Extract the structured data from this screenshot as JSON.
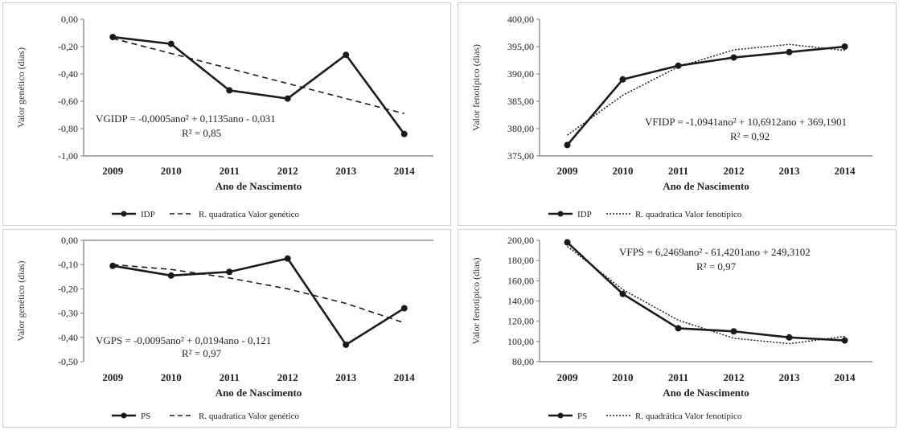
{
  "chart_data": [
    {
      "type": "line",
      "x": [
        "2009",
        "2010",
        "2011",
        "2012",
        "2013",
        "2014"
      ],
      "xlabel": "Ano de Nascimento",
      "ylabel": "Valor genético (dias)",
      "ylim": [
        -1.0,
        0.0
      ],
      "yticks": [
        "0,00",
        "-0,20",
        "-0,40",
        "-0,60",
        "-0,80",
        "-1,00"
      ],
      "grid": false,
      "series": [
        {
          "name": "IDP",
          "style": "solid-marker",
          "values": [
            -0.13,
            -0.18,
            -0.52,
            -0.58,
            -0.26,
            -0.84
          ]
        },
        {
          "name": "R. quadratica Valor genético",
          "style": "dashed",
          "values": [
            -0.14,
            -0.25,
            -0.36,
            -0.47,
            -0.58,
            -0.69
          ]
        }
      ],
      "equation": "VGIDP = -0,0005ano² + 0,1135ano - 0,031",
      "r2": "R² = 0,85",
      "legend": [
        "IDP",
        "R. quadratica Valor genético"
      ]
    },
    {
      "type": "line",
      "x": [
        "2009",
        "2010",
        "2011",
        "2012",
        "2013",
        "2014"
      ],
      "xlabel": "Ano de Nascimento",
      "ylabel": "Valor fenotípico (dias)",
      "ylim": [
        375.0,
        400.0
      ],
      "yticks": [
        "400,00",
        "395,00",
        "390,00",
        "385,00",
        "380,00",
        "375,00"
      ],
      "grid": false,
      "series": [
        {
          "name": "IDP",
          "style": "solid-marker",
          "values": [
            377.0,
            389.0,
            391.5,
            393.0,
            394.0,
            395.0
          ]
        },
        {
          "name": "R. quadratica Valor fenotípico",
          "style": "dotted",
          "values": [
            378.8,
            386.1,
            391.3,
            394.4,
            395.4,
            394.3
          ]
        }
      ],
      "equation": "VFIDP = -1,0941ano² + 10,6912ano + 369,1901",
      "r2": "R² = 0,92",
      "legend": [
        "IDP",
        "R. quadratica Valor fenotípico"
      ]
    },
    {
      "type": "line",
      "x": [
        "2009",
        "2010",
        "2011",
        "2012",
        "2013",
        "2014"
      ],
      "xlabel": "Ano de Nascimento",
      "ylabel": "Valor genético (dias)",
      "ylim": [
        -0.5,
        0.0
      ],
      "yticks": [
        "0,00",
        "-0,10",
        "-0,20",
        "-0,30",
        "-0,40",
        "-0,50"
      ],
      "grid": false,
      "series": [
        {
          "name": "PS",
          "style": "solid-marker",
          "values": [
            -0.105,
            -0.145,
            -0.13,
            -0.075,
            -0.43,
            -0.28
          ]
        },
        {
          "name": "R. quadratica Valor genético",
          "style": "dashed",
          "values": [
            -0.1,
            -0.12,
            -0.155,
            -0.2,
            -0.26,
            -0.34
          ]
        }
      ],
      "equation": "VGPS = -0,0095ano² + 0,0194ano - 0,121",
      "r2": "R² = 0,97",
      "legend": [
        "PS",
        "R. quadratica Valor genético"
      ]
    },
    {
      "type": "line",
      "x": [
        "2009",
        "2010",
        "2011",
        "2012",
        "2013",
        "2014"
      ],
      "xlabel": "Ano de Nascimento",
      "ylabel": "Valor fenotípico (dias)",
      "ylim": [
        80.0,
        200.0
      ],
      "yticks": [
        "200,00",
        "180,00",
        "160,00",
        "140,00",
        "120,00",
        "100,00",
        "80,00"
      ],
      "grid": false,
      "series": [
        {
          "name": "PS",
          "style": "solid-marker",
          "values": [
            198.0,
            147.0,
            113.0,
            110.0,
            104.0,
            101.0
          ]
        },
        {
          "name": "R. quadrática Valor fenotípico",
          "style": "dotted",
          "values": [
            194.1,
            151.3,
            121.0,
            103.2,
            97.8,
            104.9
          ]
        }
      ],
      "equation": "VFPS = 6,2469ano² - 61,4201ano + 249,3102",
      "r2": "R² = 0,97",
      "legend": [
        "PS",
        "R. quadrática Valor fenotípico"
      ]
    }
  ],
  "colors": {
    "line": "#1a1a1a",
    "axis": "#7a7a7a",
    "border": "#cfcfcf"
  }
}
